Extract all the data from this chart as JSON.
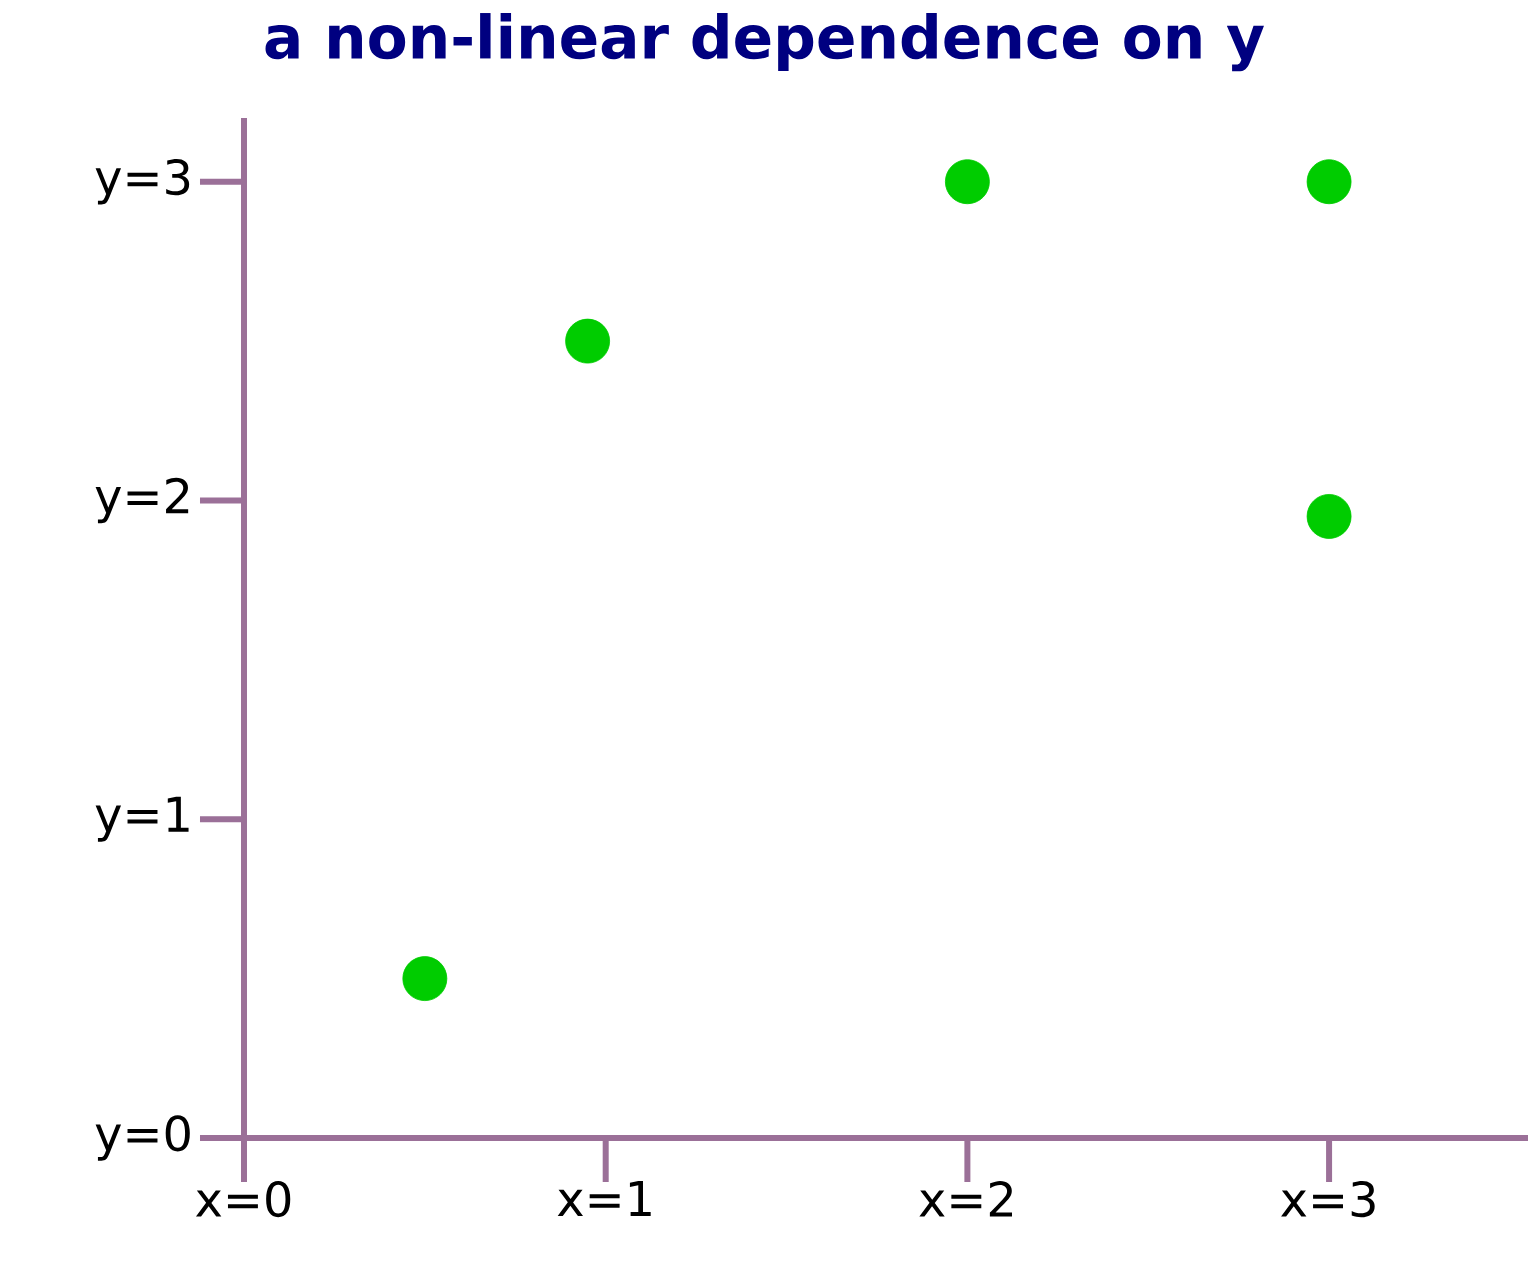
{
  "chart_data": {
    "type": "scatter",
    "title": "a non-linear dependence on y",
    "x": [
      0.5,
      0.95,
      2,
      3,
      3
    ],
    "series": [
      {
        "color": "#00cc00",
        "values": [
          0.5,
          2.5,
          3,
          3,
          1.95
        ]
      }
    ],
    "marker": "circle",
    "grid": false,
    "xlim": [
      0,
      3.55
    ],
    "ylim": [
      0,
      3.2
    ],
    "xticks": [
      {
        "value": 0,
        "label": "x=0"
      },
      {
        "value": 1,
        "label": "x=1"
      },
      {
        "value": 2,
        "label": "x=2"
      },
      {
        "value": 3,
        "label": "x=3"
      }
    ],
    "yticks": [
      {
        "value": 0,
        "label": "y=0"
      },
      {
        "value": 1,
        "label": "y=1"
      },
      {
        "value": 2,
        "label": "y=2"
      },
      {
        "value": 3,
        "label": "y=3"
      }
    ]
  }
}
